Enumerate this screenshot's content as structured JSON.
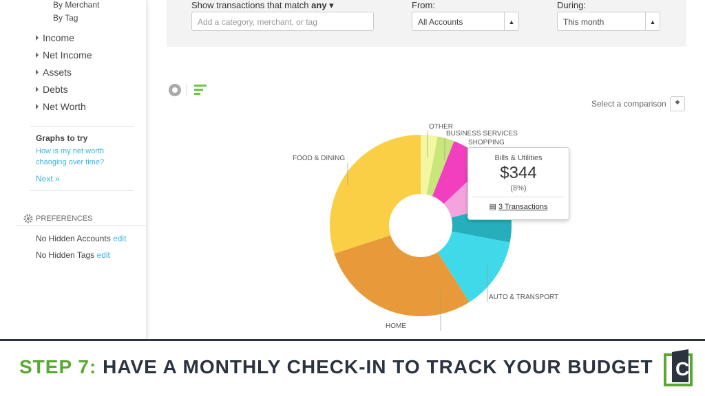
{
  "sidebar": {
    "items_top": [
      "By Merchant",
      "By Tag"
    ],
    "categories": [
      "Income",
      "Net Income",
      "Assets",
      "Debts",
      "Net Worth"
    ],
    "graphs_title": "Graphs to try",
    "graphs_link": [
      "How is my net worth",
      "changing over time?"
    ],
    "next": "Next »",
    "preferences": "PREFERENCES",
    "hidden_accounts": "No Hidden Accounts",
    "hidden_tags": "No Hidden Tags",
    "edit": "edit"
  },
  "filter": {
    "match_label": "Show transactions that match",
    "match_value": "any",
    "placeholder": "Add a category, merchant, or tag",
    "from_label": "From:",
    "from_value": "All Accounts",
    "during_label": "During:",
    "during_value": "This month"
  },
  "comparison": "Select a comparison",
  "tooltip": {
    "category": "Bills & Utilities",
    "amount": "$344",
    "percent": "(8%)",
    "transactions": "3  Transactions"
  },
  "chart_data": {
    "type": "pie",
    "categories": [
      "OTHER",
      "BUSINESS SERVICES",
      "SHOPPING",
      null,
      null,
      "AUTO & TRANSPORT",
      "HOME",
      "FOOD & DINING"
    ],
    "values": [
      3,
      3,
      7,
      8,
      7,
      13,
      29,
      30
    ],
    "colors": [
      "#f4f6a0",
      "#c9e67a",
      "#f23fbf",
      "#f5a3dc",
      "#27aebd",
      "#3fd9ea",
      "#e89a3a",
      "#fbcf45"
    ]
  },
  "banner": {
    "step": "STEP 7:",
    "text": "HAVE A MONTHLY CHECK-IN TO TRACK YOUR BUDGET"
  }
}
